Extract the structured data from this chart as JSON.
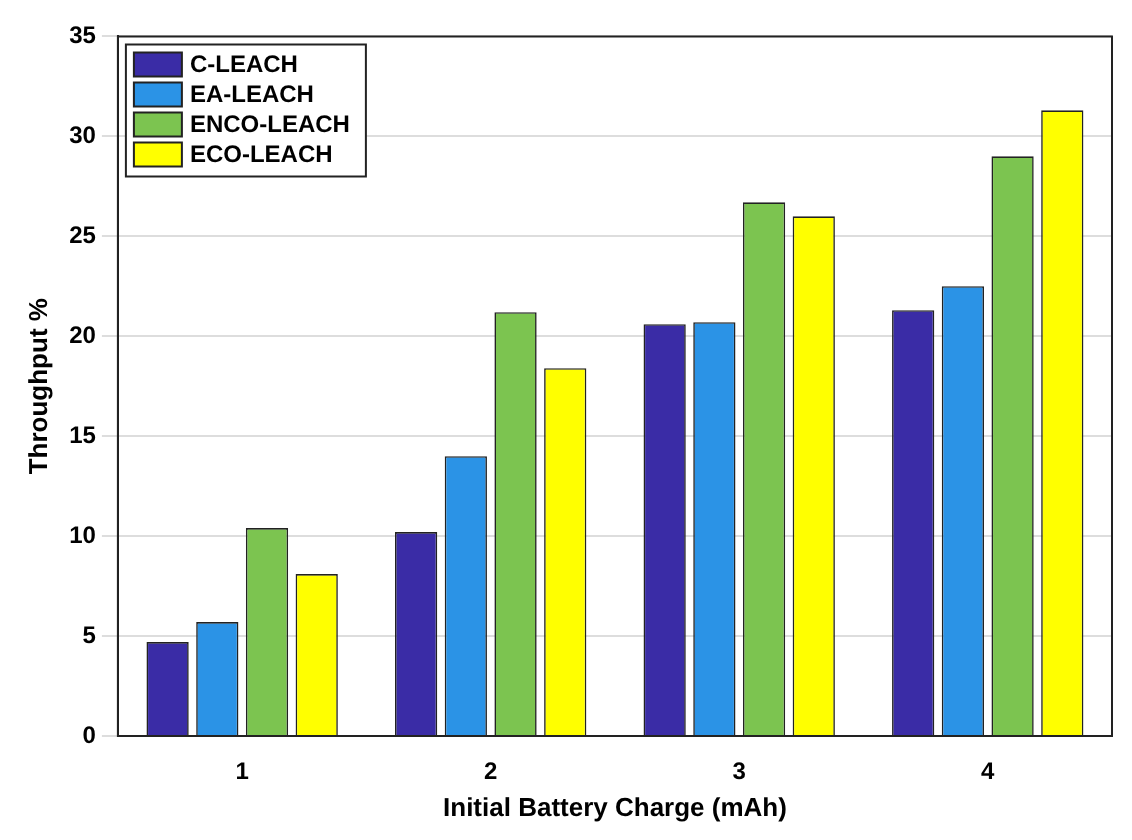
{
  "chart_data": {
    "type": "bar",
    "xlabel": "Initial Battery Charge (mAh)",
    "ylabel": "Throughput %",
    "categories": [
      "1",
      "2",
      "3",
      "4"
    ],
    "series": [
      {
        "name": "C-LEACH",
        "color": "#3a2ca6",
        "values": [
          4.7,
          10.2,
          20.6,
          21.3
        ]
      },
      {
        "name": "EA-LEACH",
        "color": "#2b93e6",
        "values": [
          5.7,
          14.0,
          20.7,
          22.5
        ]
      },
      {
        "name": "ENCO-LEACH",
        "color": "#7cc450",
        "values": [
          10.4,
          21.2,
          26.7,
          29.0
        ]
      },
      {
        "name": "ECO-LEACH",
        "color": "#ffff00",
        "values": [
          8.1,
          18.4,
          26.0,
          31.3
        ]
      }
    ],
    "ylim": [
      0,
      35
    ],
    "yticks": [
      0,
      5,
      10,
      15,
      20,
      25,
      30,
      35
    ],
    "grid": "y",
    "legend": "top left"
  }
}
